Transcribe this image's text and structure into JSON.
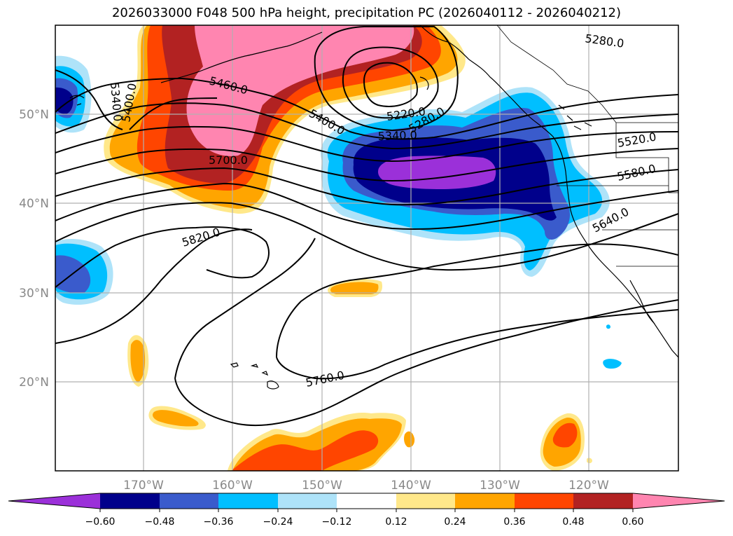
{
  "title": "2026033000 F048 500 hPa height, precipitation PC (2026040112 - 2026040212)",
  "map": {
    "lat_labels": [
      "50°N",
      "40°N",
      "30°N",
      "20°N"
    ],
    "lon_labels": [
      "170°W",
      "160°W",
      "150°W",
      "140°W",
      "130°W",
      "120°W"
    ],
    "lat_range": [
      10,
      60
    ],
    "lon_range": [
      -180,
      -110
    ],
    "gridlines": true
  },
  "contour_labels": [
    "5280.0",
    "5460.0",
    "5400.0",
    "5340.0",
    "5400.0",
    "5340.0",
    "5220.0",
    "5280.0",
    "5520.0",
    "5700.0",
    "5580.0",
    "5640.0",
    "5820.0",
    "5760.0"
  ],
  "colorbar": {
    "tick_labels": [
      "−0.60",
      "−0.48",
      "−0.36",
      "−0.24",
      "−0.12",
      "0.12",
      "0.24",
      "0.36",
      "0.48",
      "0.60"
    ],
    "colors": {
      "under": "#9b30d9",
      "n60": "#00008b",
      "n48": "#3a5bcc",
      "n36": "#00bfff",
      "n24": "#aee3f9",
      "n12": "#ffffff",
      "p12": "#ffe88a",
      "p24": "#ffa500",
      "p36": "#ff4500",
      "p48": "#b22222",
      "over": "#ff85b0"
    },
    "extend": "both"
  }
}
